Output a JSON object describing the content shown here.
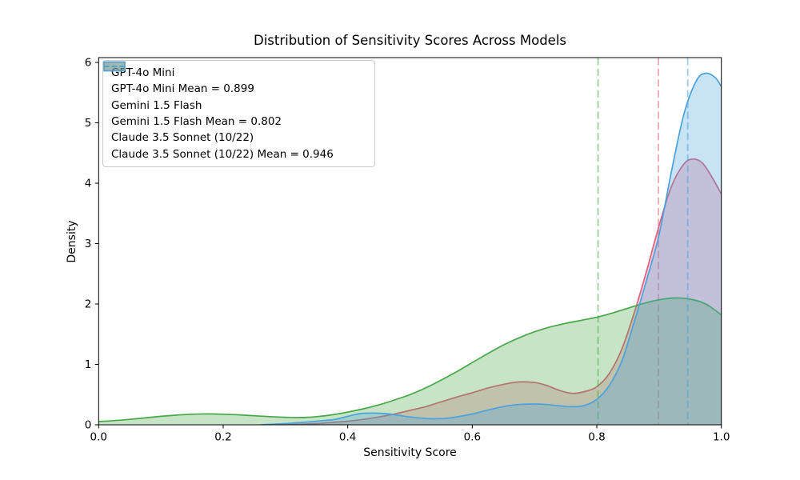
{
  "chart_data": {
    "type": "area",
    "subtype": "kde-density",
    "title": "Distribution of Sensitivity Scores Across Models",
    "xlabel": "Sensitivity Score",
    "ylabel": "Density",
    "xlim": [
      0.0,
      1.0
    ],
    "ylim": [
      0,
      6.08
    ],
    "grid": false,
    "legend_position": "upper left",
    "xtick_values": [
      0.0,
      0.2,
      0.4,
      0.6,
      0.8,
      1.0
    ],
    "xtick_labels": [
      "0.0",
      "0.2",
      "0.4",
      "0.6",
      "0.8",
      "1.0"
    ],
    "ytick_values": [
      0,
      1,
      2,
      3,
      4,
      5,
      6
    ],
    "ytick_labels": [
      "0",
      "1",
      "2",
      "3",
      "4",
      "5",
      "6"
    ],
    "fill_opacity": 0.3,
    "mean_line_opacity": 0.55,
    "series": [
      {
        "name": "GPT-4o Mini",
        "color": "#e0607e",
        "mean": 0.899,
        "x": [
          0.3,
          0.325,
          0.35,
          0.375,
          0.4,
          0.425,
          0.45,
          0.475,
          0.5,
          0.525,
          0.55,
          0.575,
          0.6,
          0.625,
          0.65,
          0.675,
          0.7,
          0.72,
          0.74,
          0.76,
          0.78,
          0.8,
          0.82,
          0.84,
          0.86,
          0.88,
          0.9,
          0.92,
          0.94,
          0.955,
          0.97,
          0.985,
          1.0
        ],
        "density": [
          0,
          0.01,
          0.02,
          0.04,
          0.06,
          0.09,
          0.13,
          0.18,
          0.24,
          0.3,
          0.38,
          0.46,
          0.53,
          0.61,
          0.67,
          0.71,
          0.7,
          0.65,
          0.57,
          0.52,
          0.55,
          0.63,
          0.85,
          1.25,
          1.85,
          2.55,
          3.3,
          3.95,
          4.32,
          4.4,
          4.33,
          4.1,
          3.82
        ]
      },
      {
        "name": "Gemini 1.5 Flash",
        "color": "#47a747",
        "mean": 0.802,
        "x": [
          0.0,
          0.025,
          0.05,
          0.075,
          0.1,
          0.125,
          0.15,
          0.175,
          0.2,
          0.225,
          0.25,
          0.275,
          0.3,
          0.325,
          0.35,
          0.375,
          0.4,
          0.425,
          0.45,
          0.475,
          0.5,
          0.525,
          0.55,
          0.575,
          0.6,
          0.625,
          0.65,
          0.675,
          0.7,
          0.725,
          0.75,
          0.775,
          0.8,
          0.825,
          0.85,
          0.875,
          0.9,
          0.925,
          0.95,
          0.975,
          1.0
        ],
        "density": [
          0.055,
          0.07,
          0.09,
          0.115,
          0.14,
          0.16,
          0.175,
          0.18,
          0.175,
          0.165,
          0.15,
          0.135,
          0.125,
          0.12,
          0.135,
          0.165,
          0.21,
          0.265,
          0.33,
          0.41,
          0.5,
          0.61,
          0.74,
          0.88,
          1.03,
          1.18,
          1.32,
          1.44,
          1.54,
          1.62,
          1.68,
          1.73,
          1.78,
          1.85,
          1.93,
          2.01,
          2.07,
          2.1,
          2.08,
          2.0,
          1.82
        ]
      },
      {
        "name": "Claude 3.5 Sonnet (10/22)",
        "color": "#4aa2dc",
        "mean": 0.946,
        "x": [
          0.26,
          0.28,
          0.3,
          0.32,
          0.34,
          0.36,
          0.38,
          0.4,
          0.42,
          0.44,
          0.46,
          0.48,
          0.5,
          0.52,
          0.54,
          0.56,
          0.58,
          0.6,
          0.62,
          0.64,
          0.66,
          0.68,
          0.7,
          0.72,
          0.74,
          0.76,
          0.78,
          0.8,
          0.82,
          0.84,
          0.86,
          0.88,
          0.9,
          0.92,
          0.94,
          0.96,
          0.975,
          0.99,
          1.0
        ],
        "density": [
          0,
          0.01,
          0.02,
          0.035,
          0.05,
          0.07,
          0.09,
          0.14,
          0.185,
          0.195,
          0.185,
          0.16,
          0.13,
          0.11,
          0.1,
          0.11,
          0.14,
          0.18,
          0.23,
          0.28,
          0.32,
          0.34,
          0.345,
          0.335,
          0.315,
          0.3,
          0.32,
          0.42,
          0.65,
          1.05,
          1.7,
          2.4,
          3.15,
          4.2,
          5.15,
          5.7,
          5.82,
          5.75,
          5.6
        ]
      }
    ],
    "legend": [
      {
        "type": "patch",
        "series": 0,
        "label": "GPT-4o Mini"
      },
      {
        "type": "dashed",
        "series": 0,
        "label": "GPT-4o Mini Mean = 0.899"
      },
      {
        "type": "patch",
        "series": 1,
        "label": "Gemini 1.5 Flash"
      },
      {
        "type": "dashed",
        "series": 1,
        "label": "Gemini 1.5 Flash Mean = 0.802"
      },
      {
        "type": "patch",
        "series": 2,
        "label": "Claude 3.5 Sonnet (10/22)"
      },
      {
        "type": "dashed",
        "series": 2,
        "label": "Claude 3.5 Sonnet (10/22) Mean = 0.946"
      }
    ]
  }
}
